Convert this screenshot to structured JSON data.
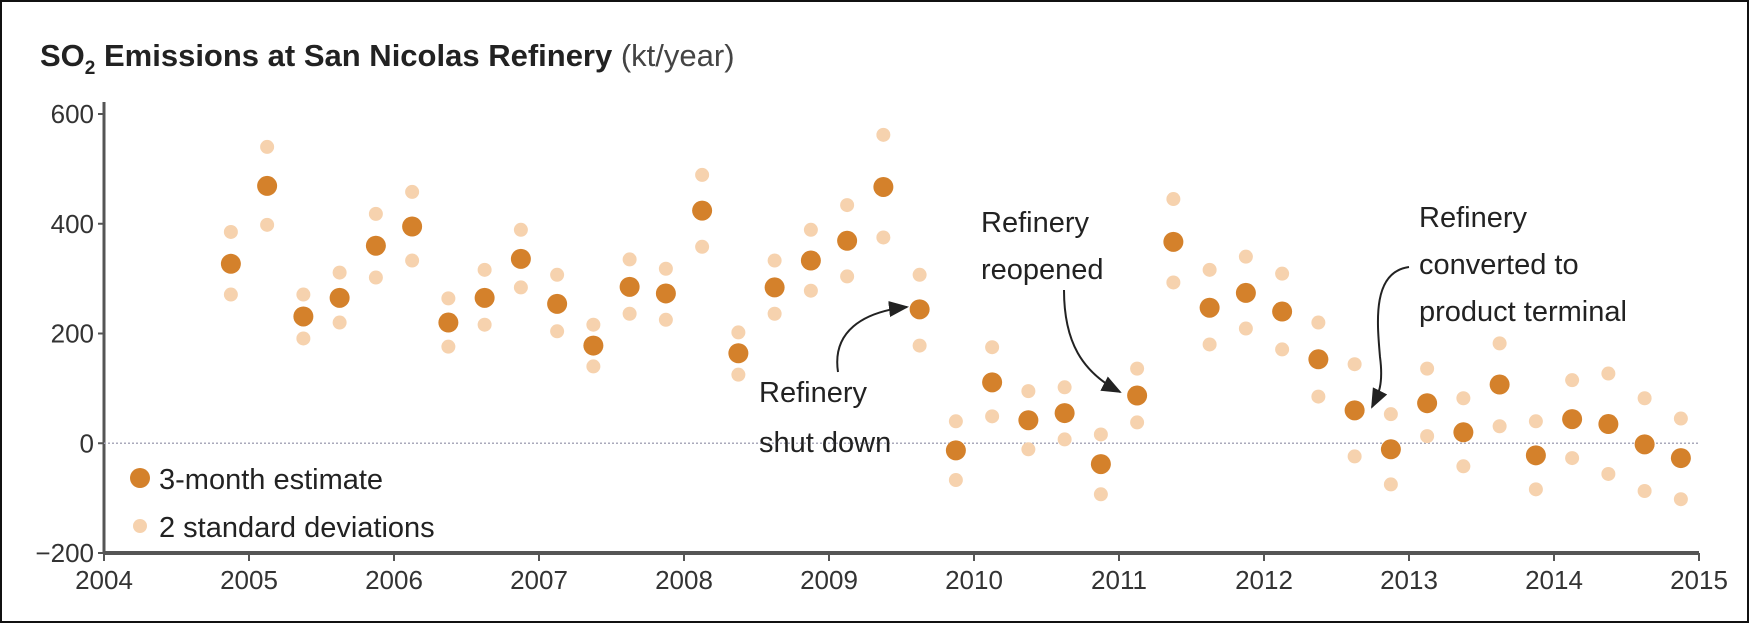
{
  "chart_data": {
    "type": "scatter",
    "title": {
      "main": "SO",
      "subscript": "2",
      "rest": " Emissions at San Nicolas Refinery",
      "unit": " (kt/year)"
    },
    "xlim": [
      2004,
      2015
    ],
    "ylim": [
      -200,
      600
    ],
    "x_ticks": [
      2004,
      2005,
      2006,
      2007,
      2008,
      2009,
      2010,
      2011,
      2012,
      2013,
      2014,
      2015
    ],
    "y_ticks": [
      -200,
      0,
      200,
      400,
      600
    ],
    "y_tick_labels": [
      "−200",
      "0",
      "200",
      "400",
      "600"
    ],
    "zero_line": "dotted",
    "grid": false,
    "legend_placement": "bottom-left",
    "colors": {
      "estimate": "#d4812b",
      "deviation": "#f6d2ae",
      "axis": "#555555"
    },
    "series": [
      {
        "name": "3-month estimate",
        "key": "estimate"
      },
      {
        "name": "2 standard deviations",
        "key": "deviation"
      }
    ],
    "x": [
      2004.875,
      2005.125,
      2005.375,
      2005.625,
      2005.875,
      2006.125,
      2006.375,
      2006.625,
      2006.875,
      2007.125,
      2007.375,
      2007.625,
      2007.875,
      2008.125,
      2008.375,
      2008.625,
      2008.875,
      2009.125,
      2009.375,
      2009.625,
      2009.875,
      2010.125,
      2010.375,
      2010.625,
      2010.875,
      2011.125,
      2011.375,
      2011.625,
      2011.875,
      2012.125,
      2012.375,
      2012.625,
      2012.875,
      2013.125,
      2013.375,
      2013.625,
      2013.875,
      2014.125,
      2014.375,
      2014.625,
      2014.875
    ],
    "estimate": [
      327,
      469,
      231,
      265,
      360,
      395,
      220,
      265,
      336,
      254,
      178,
      285,
      273,
      424,
      164,
      284,
      333,
      369,
      467,
      244,
      -13,
      111,
      42,
      55,
      -38,
      87,
      367,
      247,
      274,
      240,
      153,
      60,
      -11,
      73,
      20,
      107,
      -22,
      44,
      35,
      -2,
      -27
    ],
    "upper": [
      385,
      540,
      271,
      311,
      418,
      458,
      264,
      316,
      389,
      307,
      216,
      335,
      318,
      489,
      202,
      333,
      389,
      434,
      562,
      307,
      40,
      175,
      95,
      102,
      16,
      136,
      445,
      316,
      340,
      309,
      220,
      144,
      53,
      136,
      82,
      182,
      40,
      115,
      127,
      82,
      45
    ],
    "lower": [
      271,
      398,
      191,
      220,
      302,
      333,
      176,
      216,
      284,
      204,
      140,
      236,
      225,
      358,
      125,
      236,
      278,
      304,
      375,
      178,
      -67,
      49,
      -11,
      7,
      -93,
      38,
      293,
      180,
      209,
      171,
      85,
      -24,
      -75,
      13,
      -42,
      31,
      -84,
      -27,
      -56,
      -87,
      -102
    ],
    "annotations": [
      {
        "lines": [
          "Refinery",
          "shut down"
        ],
        "x": 2009.625,
        "y": 244
      },
      {
        "lines": [
          "Refinery",
          "reopened"
        ],
        "x": 2011.125,
        "y": 87
      },
      {
        "lines": [
          "Refinery",
          "converted to",
          "product terminal"
        ],
        "x": 2012.625,
        "y": 60
      }
    ]
  }
}
